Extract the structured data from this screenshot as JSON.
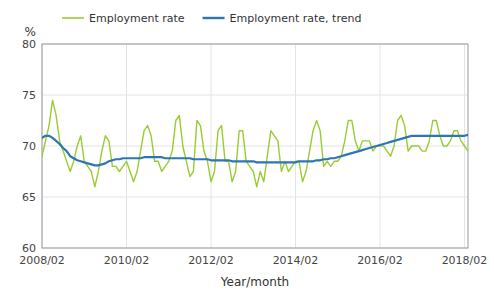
{
  "chart_data": {
    "type": "line",
    "x_label": "Year/month",
    "y_label": "%",
    "categories": [
      "2008/02",
      null,
      null,
      null,
      null,
      null,
      null,
      null,
      null,
      null,
      null,
      null,
      null,
      null,
      null,
      null,
      null,
      null,
      null,
      null,
      null,
      null,
      null,
      null,
      "2010/02",
      null,
      null,
      null,
      null,
      null,
      null,
      null,
      null,
      null,
      null,
      null,
      null,
      null,
      null,
      null,
      null,
      null,
      null,
      null,
      null,
      null,
      null,
      null,
      "2012/02",
      null,
      null,
      null,
      null,
      null,
      null,
      null,
      null,
      null,
      null,
      null,
      null,
      null,
      null,
      null,
      null,
      null,
      null,
      null,
      null,
      null,
      null,
      null,
      "2014/02",
      null,
      null,
      null,
      null,
      null,
      null,
      null,
      null,
      null,
      null,
      null,
      null,
      null,
      null,
      null,
      null,
      null,
      null,
      null,
      null,
      null,
      null,
      null,
      "2016/02",
      null,
      null,
      null,
      null,
      null,
      null,
      null,
      null,
      null,
      null,
      null,
      null,
      null,
      null,
      null,
      null,
      null,
      null,
      null,
      null,
      null,
      null,
      null,
      "2018/02",
      null
    ],
    "ylim": [
      60,
      80
    ],
    "yticks": [
      60,
      65,
      70,
      75,
      80
    ],
    "grid": true,
    "legend": "top",
    "series": [
      {
        "name": "Employment rate",
        "color": "#99CC33",
        "values": [
          69.0,
          70.5,
          72.0,
          74.5,
          73.0,
          70.5,
          69.5,
          68.5,
          67.5,
          68.5,
          70.0,
          71.0,
          68.5,
          68.0,
          67.5,
          66.0,
          67.5,
          69.5,
          71.0,
          70.5,
          68.0,
          68.0,
          67.5,
          68.0,
          68.5,
          67.5,
          66.5,
          67.5,
          69.5,
          71.5,
          72.0,
          71.0,
          68.5,
          68.5,
          67.5,
          68.0,
          68.5,
          69.5,
          72.5,
          73.0,
          70.0,
          68.5,
          67.0,
          67.5,
          72.5,
          72.0,
          69.5,
          68.5,
          66.5,
          67.5,
          71.5,
          72.0,
          68.5,
          68.5,
          66.5,
          67.5,
          71.5,
          71.5,
          68.5,
          68.0,
          67.5,
          66.0,
          67.5,
          66.5,
          69.0,
          71.5,
          71.0,
          70.5,
          67.5,
          68.5,
          67.5,
          68.0,
          68.5,
          68.5,
          66.5,
          67.5,
          69.5,
          71.5,
          72.5,
          71.5,
          68.0,
          68.5,
          68.0,
          68.5,
          68.5,
          69.0,
          70.5,
          72.5,
          72.5,
          70.5,
          69.5,
          70.5,
          70.5,
          70.5,
          69.5,
          70.0,
          70.0,
          70.0,
          69.5,
          69.0,
          70.0,
          72.5,
          73.0,
          72.0,
          69.5,
          70.0,
          70.0,
          70.0,
          69.5,
          69.5,
          70.5,
          72.5,
          72.5,
          71.0,
          70.0,
          70.0,
          70.5,
          71.5,
          71.5,
          70.5,
          70.0,
          69.5
        ]
      },
      {
        "name": "Employment rate, trend",
        "color": "#2E75B6",
        "values": [
          70.8,
          71.0,
          71.0,
          70.8,
          70.5,
          70.2,
          69.8,
          69.5,
          69.0,
          68.8,
          68.6,
          68.5,
          68.4,
          68.3,
          68.2,
          68.1,
          68.1,
          68.2,
          68.3,
          68.5,
          68.6,
          68.7,
          68.7,
          68.8,
          68.8,
          68.8,
          68.8,
          68.8,
          68.8,
          68.9,
          68.9,
          68.9,
          68.9,
          68.9,
          68.9,
          68.8,
          68.8,
          68.8,
          68.8,
          68.8,
          68.8,
          68.8,
          68.8,
          68.7,
          68.7,
          68.7,
          68.7,
          68.7,
          68.6,
          68.6,
          68.6,
          68.6,
          68.6,
          68.6,
          68.5,
          68.5,
          68.5,
          68.5,
          68.5,
          68.5,
          68.5,
          68.4,
          68.4,
          68.4,
          68.4,
          68.4,
          68.4,
          68.4,
          68.4,
          68.4,
          68.4,
          68.4,
          68.4,
          68.5,
          68.5,
          68.5,
          68.5,
          68.5,
          68.6,
          68.6,
          68.7,
          68.7,
          68.8,
          68.8,
          68.9,
          69.0,
          69.1,
          69.2,
          69.3,
          69.4,
          69.5,
          69.6,
          69.7,
          69.8,
          69.9,
          70.0,
          70.1,
          70.2,
          70.3,
          70.4,
          70.5,
          70.6,
          70.7,
          70.8,
          70.9,
          71.0,
          71.0,
          71.0,
          71.0,
          71.0,
          71.0,
          71.0,
          71.0,
          71.0,
          71.0,
          71.0,
          71.0,
          71.0,
          71.0,
          71.0,
          71.0,
          71.1
        ]
      }
    ]
  }
}
